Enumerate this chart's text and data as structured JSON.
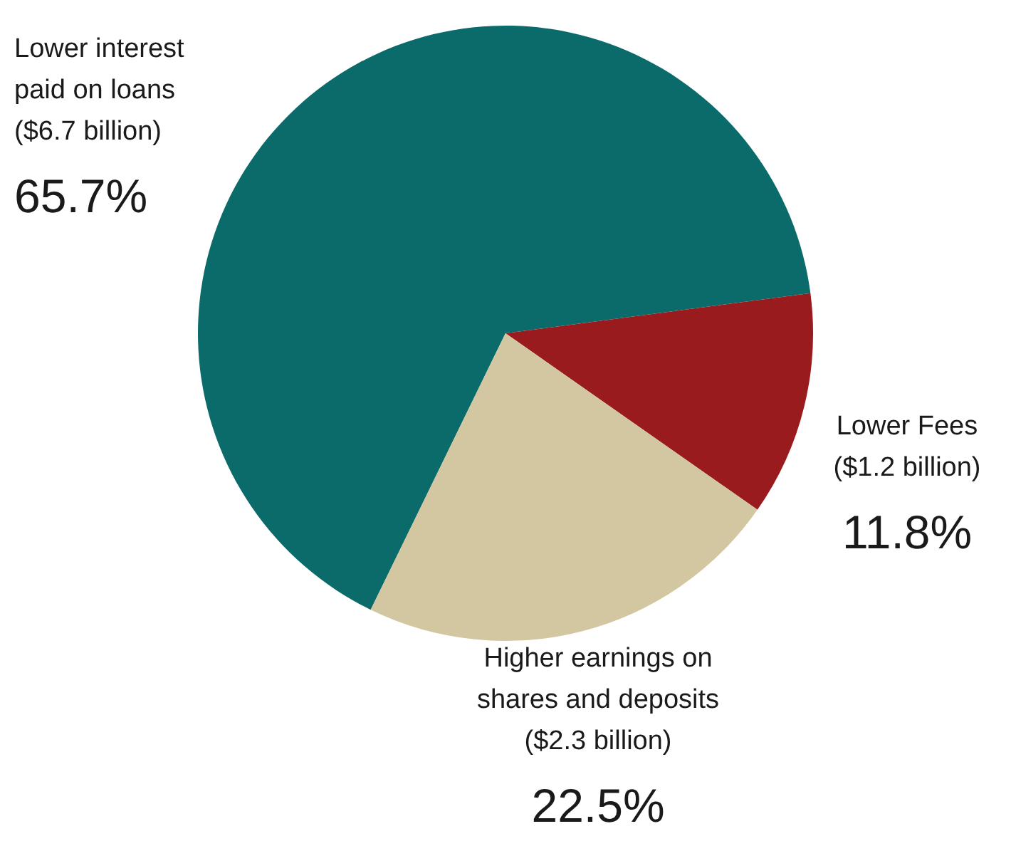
{
  "chart_data": {
    "type": "pie",
    "categories": [
      "Lower interest paid on loans ($6.7 billion)",
      "Lower Fees ($1.2 billion)",
      "Higher earnings on shares and deposits ($2.3 billion)"
    ],
    "values": [
      65.7,
      11.8,
      22.5
    ],
    "colors": [
      "#0b6b6b",
      "#9a1b1e",
      "#d2c7a1"
    ],
    "value_labels": [
      "65.7%",
      "11.8%",
      "22.5%"
    ],
    "legend": false
  }
}
